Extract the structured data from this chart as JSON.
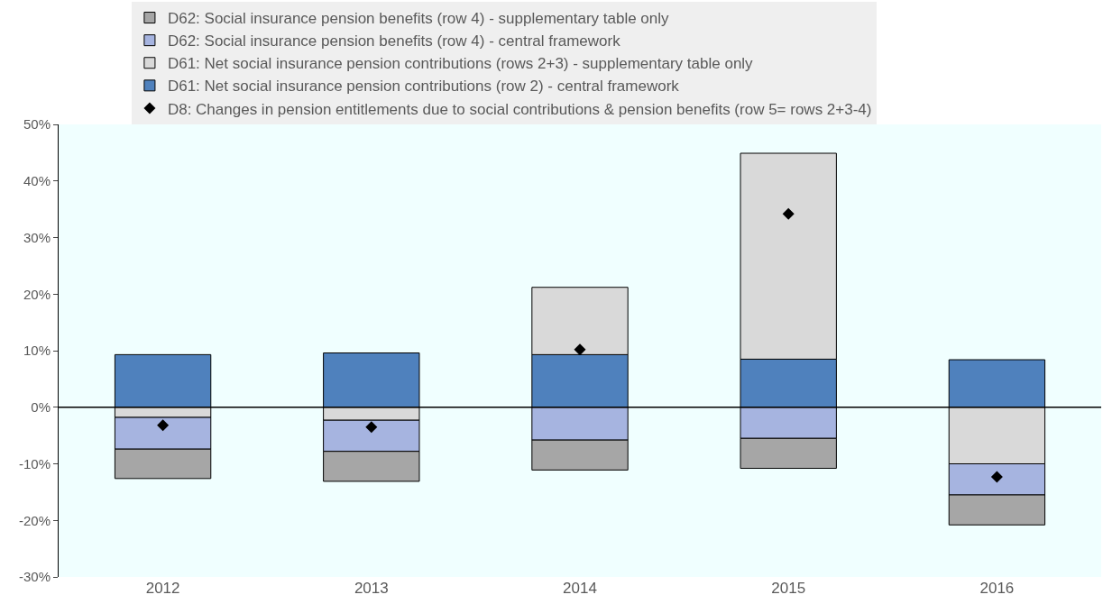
{
  "chart_data": {
    "type": "bar",
    "stacked": true,
    "categories": [
      "2012",
      "2013",
      "2014",
      "2015",
      "2016"
    ],
    "series": [
      {
        "name": "D8: Changes in pension entitlements due to social contributions & pension benefits (row 5= rows 2+3-4)",
        "type": "scatter",
        "marker": "diamond",
        "color": "#000000",
        "values": [
          -3.2,
          -3.5,
          10.2,
          34.2,
          -12.3
        ]
      },
      {
        "name": "D61: Net social insurance pension contributions (row 2) - central framework",
        "color": "#4f81bd",
        "values": [
          9.3,
          9.6,
          9.3,
          8.5,
          8.4
        ]
      },
      {
        "name": "D61: Net social insurance pension contributions (rows 2+3) - supplementary table only",
        "color": "#d9d9d9",
        "values": [
          -1.8,
          -2.3,
          11.9,
          36.4,
          -10.0
        ]
      },
      {
        "name": "D62: Social insurance pension benefits (row 4) - central framework",
        "color": "#a6b4e0",
        "values": [
          -5.6,
          -5.5,
          -5.8,
          -5.5,
          -5.5
        ]
      },
      {
        "name": "D62: Social insurance pension benefits (row 4) - supplementary table only",
        "color": "#a6a6a6",
        "values": [
          -5.2,
          -5.3,
          -5.3,
          -5.3,
          -5.3
        ]
      }
    ],
    "ylim": [
      -30,
      50
    ],
    "yticks": [
      {
        "value": -30,
        "label": "-30%"
      },
      {
        "value": -20,
        "label": "-20%"
      },
      {
        "value": -10,
        "label": "-10%"
      },
      {
        "value": 0,
        "label": "0%"
      },
      {
        "value": 10,
        "label": "10%"
      },
      {
        "value": 20,
        "label": "20%"
      },
      {
        "value": 30,
        "label": "30%"
      },
      {
        "value": 40,
        "label": "40%"
      },
      {
        "value": 50,
        "label": "50%"
      }
    ],
    "ref_lines": [
      {
        "axis": "y",
        "value": 0,
        "color": "#000000"
      }
    ],
    "legend": "top",
    "grid": false
  }
}
